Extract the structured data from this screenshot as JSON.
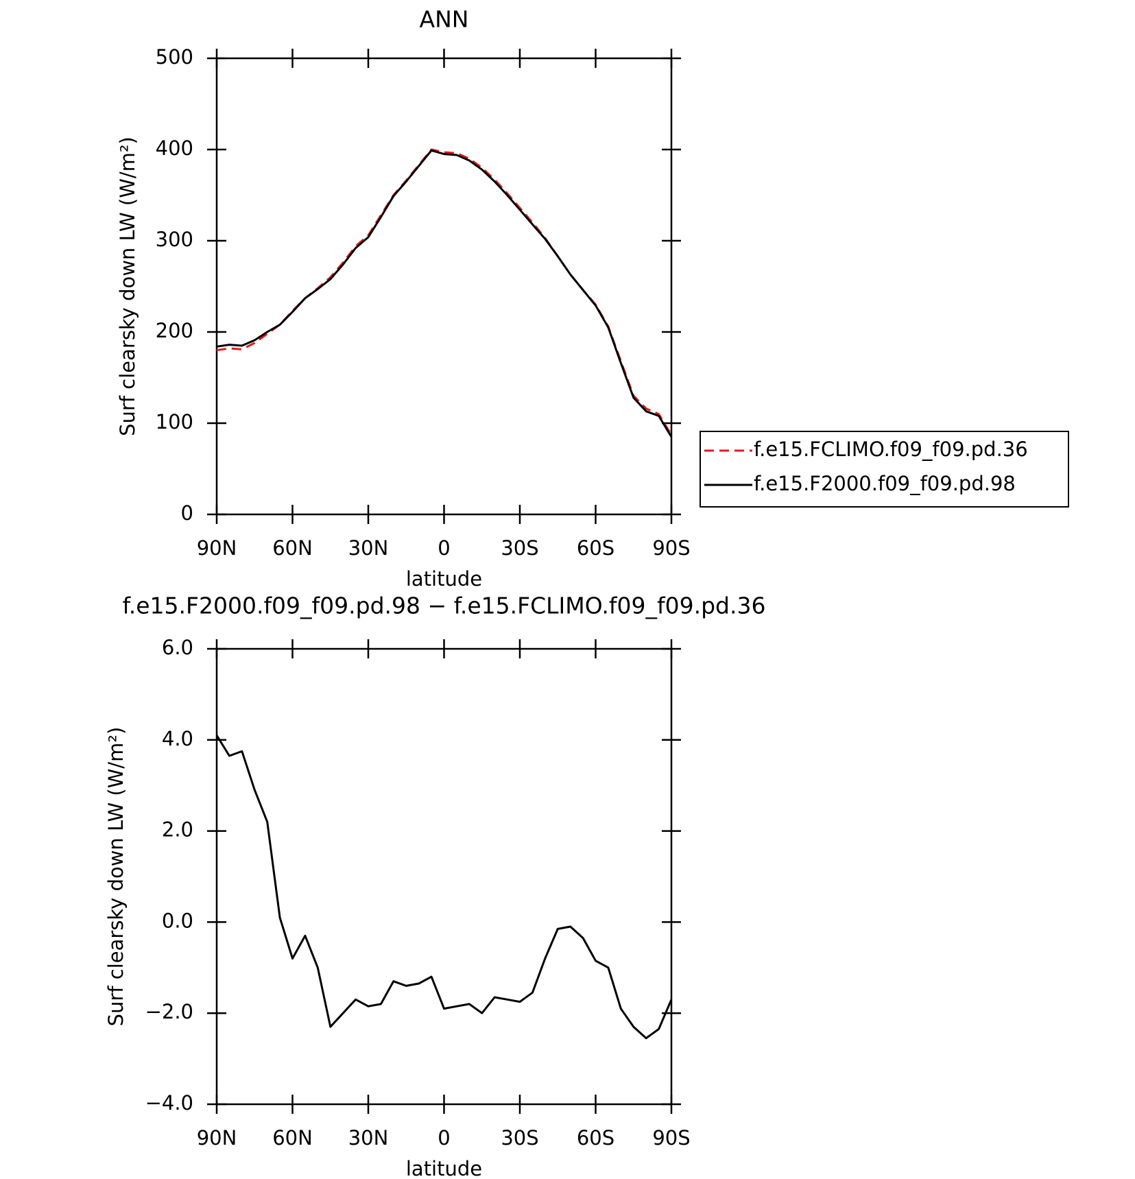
{
  "chart_data": [
    {
      "type": "line",
      "title": "ANN",
      "xlabel": "latitude",
      "ylabel": "Surf clearsky down LW (W/m²)",
      "x": [
        90,
        85,
        80,
        75,
        70,
        65,
        60,
        55,
        50,
        45,
        40,
        35,
        30,
        25,
        20,
        15,
        10,
        5,
        0,
        -5,
        -10,
        -15,
        -20,
        -25,
        -30,
        -35,
        -40,
        -45,
        -50,
        -55,
        -60,
        -65,
        -70,
        -75,
        -80,
        -85,
        -90
      ],
      "series": [
        {
          "name": "f.e15.FCLIMO.f09_f09.pd.36",
          "color": "#e31a1c",
          "dash": true,
          "values": [
            180,
            182,
            181,
            188,
            198,
            208,
            223,
            237,
            248,
            260,
            276,
            294,
            306,
            328,
            350,
            366,
            383,
            400,
            397,
            396,
            390,
            380,
            367,
            352,
            336,
            320,
            303,
            283,
            263,
            246,
            230,
            206,
            168,
            130,
            116,
            110,
            87
          ]
        },
        {
          "name": "f.e15.F2000.f09_f09.pd.98",
          "color": "#000000",
          "dash": false,
          "values": [
            184,
            186,
            185,
            191,
            200,
            208,
            222,
            237,
            247,
            258,
            274,
            292,
            304,
            326,
            349,
            365,
            382,
            399,
            395,
            394,
            388,
            378,
            365,
            350,
            334,
            318,
            302,
            283,
            263,
            246,
            229,
            205,
            166,
            128,
            113,
            108,
            85
          ]
        }
      ],
      "xlim": [
        90,
        -90
      ],
      "xticks": [
        {
          "value": 90,
          "label": "90N"
        },
        {
          "value": 60,
          "label": "60N"
        },
        {
          "value": 30,
          "label": "30N"
        },
        0,
        {
          "value": -30,
          "label": "30S"
        },
        {
          "value": -60,
          "label": "60S"
        },
        {
          "value": -90,
          "label": "90S"
        }
      ],
      "ylim": [
        0,
        500
      ],
      "yticks": [
        0,
        100,
        200,
        300,
        400,
        500
      ],
      "legend": "right"
    },
    {
      "type": "line",
      "title": "f.e15.F2000.f09_f09.pd.98 − f.e15.FCLIMO.f09_f09.pd.36",
      "xlabel": "latitude",
      "ylabel": "Surf clearsky down LW (W/m²)",
      "x": [
        90,
        85,
        80,
        75,
        70,
        65,
        60,
        55,
        50,
        45,
        40,
        35,
        30,
        25,
        20,
        15,
        10,
        5,
        0,
        -5,
        -10,
        -15,
        -20,
        -25,
        -30,
        -35,
        -40,
        -45,
        -50,
        -55,
        -60,
        -65,
        -70,
        -75,
        -80,
        -85,
        -90
      ],
      "series": [
        {
          "color": "#000000",
          "dash": false,
          "values": [
            4.1,
            3.65,
            3.75,
            2.9,
            2.2,
            0.1,
            -0.8,
            -0.3,
            -1.0,
            -2.3,
            -2.0,
            -1.7,
            -1.85,
            -1.8,
            -1.3,
            -1.4,
            -1.35,
            -1.2,
            -1.9,
            -1.85,
            -1.8,
            -2.0,
            -1.65,
            -1.7,
            -1.75,
            -1.55,
            -0.8,
            -0.15,
            -0.1,
            -0.35,
            -0.85,
            -1.0,
            -1.9,
            -2.3,
            -2.55,
            -2.35,
            -1.7
          ]
        }
      ],
      "xlim": [
        90,
        -90
      ],
      "xticks": [
        {
          "value": 90,
          "label": "90N"
        },
        {
          "value": 60,
          "label": "60N"
        },
        {
          "value": 30,
          "label": "30N"
        },
        0,
        {
          "value": -30,
          "label": "30S"
        },
        {
          "value": -60,
          "label": "60S"
        },
        {
          "value": -90,
          "label": "90S"
        }
      ],
      "ylim": [
        -4,
        6
      ],
      "yticks": [
        {
          "value": -4,
          "label": "−4.0"
        },
        {
          "value": -2,
          "label": "−2.0"
        },
        {
          "value": 0,
          "label": "0.0"
        },
        {
          "value": 2,
          "label": "2.0"
        },
        {
          "value": 4,
          "label": "4.0"
        },
        {
          "value": 6,
          "label": "6.0"
        }
      ]
    }
  ]
}
